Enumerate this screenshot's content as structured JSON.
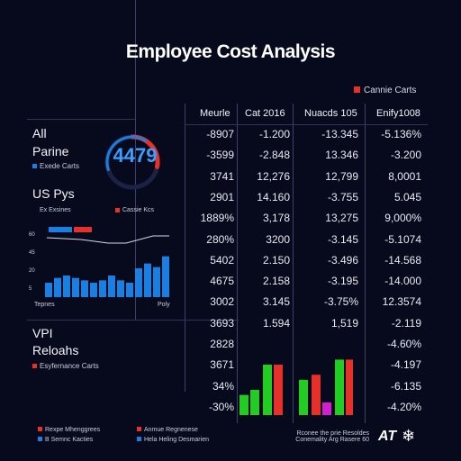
{
  "title": "Employee Cost Analysis",
  "legend_top": "Cannie Carts",
  "table": {
    "headers": [
      "Meurle",
      "Cat 2016",
      "Nuacds 105",
      "Enify1008"
    ],
    "rows": [
      [
        "-8907",
        "-1.200",
        "-13.345",
        "-5.136%"
      ],
      [
        "-3599",
        "-2.848",
        "13.346",
        "-3.200"
      ],
      [
        "3741",
        "12,276",
        "12,799",
        "8,0001"
      ],
      [
        "2901",
        "14.160",
        "-3.755",
        "5.045"
      ],
      [
        "1889%",
        "3,178",
        "13,275",
        "9,000%"
      ],
      [
        "280%",
        "3200",
        "-3.145",
        "-5.1074"
      ],
      [
        "5402",
        "2.150",
        "-3.496",
        "-14.568"
      ],
      [
        "4675",
        "2.158",
        "-3.195",
        "-14.000"
      ],
      [
        "3002",
        "3.145",
        "-3.75%",
        "12.3574"
      ],
      [
        "3693",
        "1.594",
        "1,519",
        "-2.119"
      ],
      [
        "2828",
        "",
        "",
        "-4.60%"
      ],
      [
        "3671",
        "",
        "",
        "-4.197"
      ],
      [
        "34%",
        "",
        "",
        "-6.135"
      ],
      [
        "-30%",
        "",
        "",
        "-4.20%"
      ]
    ]
  },
  "left_panel": {
    "label1": "All",
    "label2": "Parine",
    "legend1": "Exede Carts",
    "ring_value": "4479",
    "ring_percent": 0.72,
    "label3": "US Pys",
    "mini_legend_left": "Ex Exsines",
    "mini_legend_right": "Cassie Kcs",
    "axis_bottom_left": "Tepnes",
    "axis_bottom_right": "Poly",
    "ytick_labels": [
      "60",
      "45",
      "20",
      "5"
    ]
  },
  "lower_left": {
    "label1": "VPI",
    "label2": "Reloahs",
    "legend": "Esyfernance Carts"
  },
  "footer": {
    "items": [
      {
        "text": "Rexpe Mhenggrees",
        "color": "#e8302a"
      },
      {
        "text": "Anmue Regnenese",
        "color": "#e8302a"
      },
      {
        "text": "B Semnc Kacties",
        "color": "#1a7fe0"
      },
      {
        "text": "Hela Heling Desmarien",
        "color": "#1a7fe0"
      }
    ],
    "center_line1": "Rconee the prie Resoldes",
    "center_line2": "Conemality Arg Rasere 60",
    "brand": "AT"
  },
  "chart_data": [
    {
      "type": "bar",
      "title": "",
      "series": [
        {
          "values": [
            12,
            16,
            18,
            16,
            14,
            12,
            14,
            18,
            14,
            12,
            24,
            28,
            25,
            34
          ]
        }
      ],
      "ylim": [
        0,
        60
      ],
      "yticks": [
        "60",
        "45",
        "20",
        "5"
      ],
      "xlabel": "",
      "ylabel": "",
      "colors": [
        "#1a7fe0"
      ]
    },
    {
      "type": "bar",
      "title": "",
      "series": [
        {
          "name": "green",
          "values": [
            8,
            12,
            0,
            11,
            14,
            0
          ]
        },
        {
          "name": "red",
          "values": [
            0,
            0,
            19,
            0,
            0,
            16
          ]
        },
        {
          "name": "green2",
          "values": [
            0,
            18,
            0,
            0,
            19,
            20
          ]
        }
      ],
      "bars": [
        {
          "value": 8,
          "color": "#22cc22"
        },
        {
          "value": 10,
          "color": "#22cc22"
        },
        {
          "value": 20,
          "color": "#22cc22"
        },
        {
          "value": 20,
          "color": "#e8302a"
        },
        {
          "value": 14,
          "color": "#22cc22"
        },
        {
          "value": 16,
          "color": "#e8302a"
        },
        {
          "value": 5,
          "color": "#d020d0"
        },
        {
          "value": 22,
          "color": "#22cc22"
        },
        {
          "value": 22,
          "color": "#e8302a"
        }
      ],
      "ylim": [
        0,
        25
      ],
      "colors": [
        "#22cc22",
        "#e8302a",
        "#d020d0"
      ]
    }
  ]
}
